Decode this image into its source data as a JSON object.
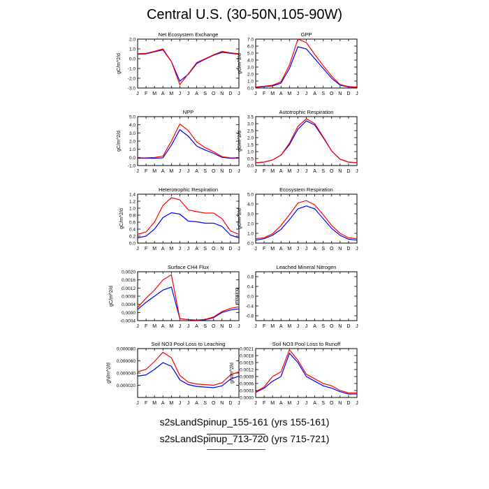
{
  "title": "Central U.S. (30-50N,105-90W)",
  "months": [
    "J",
    "F",
    "M",
    "A",
    "M",
    "J",
    "J",
    "A",
    "S",
    "O",
    "N",
    "D",
    "J"
  ],
  "legend": [
    {
      "label": "s2sLandSpinup_155-161 (yrs 155-161)",
      "color": "#0000ff"
    },
    {
      "label": "s2sLandSpinup_713-720 (yrs 715-721)",
      "color": "#ff0000"
    }
  ],
  "chart_data": [
    {
      "type": "line",
      "title": "Net Ecosystem Exchange",
      "ylabel": "gC/m^2/d",
      "ylim": [
        -3.0,
        2.0
      ],
      "yticks": [
        -3.0,
        -2.0,
        -1.0,
        0.0,
        1.0,
        2.0
      ],
      "ytick_labels": [
        "-3.0",
        "-2.0",
        "-1.0",
        "0.0",
        "1.0",
        "2.0"
      ],
      "series": [
        {
          "color": "#0000ff",
          "values": [
            0.45,
            0.5,
            0.7,
            0.9,
            -0.3,
            -2.3,
            -1.6,
            -0.5,
            -0.05,
            0.35,
            0.65,
            0.55,
            0.45
          ]
        },
        {
          "color": "#ff0000",
          "values": [
            0.5,
            0.55,
            0.75,
            1.0,
            -0.3,
            -2.65,
            -1.55,
            -0.4,
            0.0,
            0.4,
            0.75,
            0.6,
            0.5
          ]
        }
      ]
    },
    {
      "type": "line",
      "title": "GPP",
      "ylabel": "gC/m^2/d",
      "ylim": [
        0.0,
        7.0
      ],
      "yticks": [
        0,
        1,
        2,
        3,
        4,
        5,
        6,
        7
      ],
      "ytick_labels": [
        "0.0",
        "1.0",
        "2.0",
        "3.0",
        "4.0",
        "5.0",
        "6.0",
        "7.0"
      ],
      "series": [
        {
          "color": "#0000ff",
          "values": [
            0.1,
            0.2,
            0.3,
            0.7,
            2.8,
            5.9,
            5.6,
            4.2,
            2.8,
            1.4,
            0.4,
            0.15,
            0.1
          ]
        },
        {
          "color": "#ff0000",
          "values": [
            0.15,
            0.25,
            0.4,
            0.9,
            3.3,
            7.0,
            6.5,
            4.8,
            3.2,
            1.7,
            0.5,
            0.2,
            0.15
          ]
        }
      ]
    },
    {
      "type": "line",
      "title": "NPP",
      "ylabel": "gC/m^2/d",
      "ylim": [
        -1.0,
        5.0
      ],
      "yticks": [
        -1,
        0,
        1,
        2,
        3,
        4,
        5
      ],
      "ytick_labels": [
        "-1.0",
        "0.0",
        "1.0",
        "2.0",
        "3.0",
        "4.0",
        "5.0"
      ],
      "series": [
        {
          "color": "#0000ff",
          "values": [
            -0.1,
            -0.1,
            -0.1,
            -0.05,
            1.5,
            3.4,
            2.6,
            1.4,
            0.9,
            0.5,
            0.0,
            -0.1,
            -0.1
          ]
        },
        {
          "color": "#ff0000",
          "values": [
            -0.05,
            -0.05,
            0.0,
            0.15,
            2.0,
            4.1,
            3.3,
            1.9,
            1.2,
            0.7,
            0.1,
            -0.05,
            -0.05
          ]
        }
      ]
    },
    {
      "type": "line",
      "title": "Autotrophic Respiration",
      "ylabel": "gC/m^2/d",
      "ylim": [
        0.0,
        3.5
      ],
      "yticks": [
        0,
        0.5,
        1,
        1.5,
        2,
        2.5,
        3,
        3.5
      ],
      "ytick_labels": [
        "0.0",
        "0.5",
        "1.0",
        "1.5",
        "2.0",
        "2.5",
        "3.0",
        "3.5"
      ],
      "series": [
        {
          "color": "#0000ff",
          "values": [
            0.2,
            0.25,
            0.4,
            0.75,
            1.5,
            2.6,
            3.2,
            2.9,
            2.0,
            1.05,
            0.45,
            0.25,
            0.2
          ]
        },
        {
          "color": "#ff0000",
          "values": [
            0.2,
            0.25,
            0.4,
            0.75,
            1.6,
            2.8,
            3.35,
            3.0,
            2.05,
            1.05,
            0.45,
            0.25,
            0.2
          ]
        }
      ]
    },
    {
      "type": "line",
      "title": "Heterotrophic Respiration",
      "ylabel": "gC/m^2/d",
      "ylim": [
        0.0,
        1.4
      ],
      "yticks": [
        0,
        0.2,
        0.4,
        0.6,
        0.8,
        1.0,
        1.2,
        1.4
      ],
      "ytick_labels": [
        "0.0",
        "0.2",
        "0.4",
        "0.6",
        "0.8",
        "1.0",
        "1.2",
        "1.4"
      ],
      "series": [
        {
          "color": "#0000ff",
          "values": [
            0.15,
            0.2,
            0.4,
            0.73,
            0.87,
            0.83,
            0.63,
            0.61,
            0.57,
            0.57,
            0.48,
            0.23,
            0.15
          ]
        },
        {
          "color": "#ff0000",
          "values": [
            0.25,
            0.32,
            0.6,
            1.08,
            1.3,
            1.24,
            0.95,
            0.9,
            0.86,
            0.86,
            0.7,
            0.35,
            0.25
          ]
        }
      ]
    },
    {
      "type": "line",
      "title": "Ecosystem Respiration",
      "ylabel": "gC/m^2/d",
      "ylim": [
        0.0,
        5.0
      ],
      "yticks": [
        0,
        1,
        2,
        3,
        4,
        5
      ],
      "ytick_labels": [
        "0.0",
        "1.0",
        "2.0",
        "3.0",
        "4.0",
        "5.0"
      ],
      "series": [
        {
          "color": "#0000ff",
          "values": [
            0.3,
            0.45,
            0.8,
            1.4,
            2.4,
            3.5,
            3.8,
            3.5,
            2.5,
            1.5,
            0.8,
            0.4,
            0.3
          ]
        },
        {
          "color": "#ff0000",
          "values": [
            0.45,
            0.55,
            0.95,
            1.8,
            2.9,
            4.1,
            4.35,
            3.9,
            2.9,
            1.8,
            1.0,
            0.55,
            0.45
          ]
        }
      ]
    },
    {
      "type": "line",
      "title": "Surface CH4 Flux",
      "ylabel": "gC/m^2/d",
      "ylim": [
        -0.0004,
        0.002
      ],
      "yticks": [
        -0.0004,
        0,
        0.0004,
        0.0008,
        0.0012,
        0.0016,
        0.002
      ],
      "ytick_labels": [
        "-0.0004",
        "0.0000",
        "0.0004",
        "0.0008",
        "0.0012",
        "0.0016",
        "0.0020"
      ],
      "series": [
        {
          "color": "#0000ff",
          "values": [
            0.00015,
            0.0005,
            0.0008,
            0.0011,
            0.00125,
            -0.0003,
            -0.00035,
            -0.00038,
            -0.00036,
            -0.00025,
            0.0,
            0.00012,
            0.00018
          ]
        },
        {
          "color": "#ff0000",
          "values": [
            0.00025,
            0.0007,
            0.0011,
            0.0016,
            0.00185,
            -0.0003,
            -0.00035,
            -0.00037,
            -0.00034,
            -0.00022,
            5e-05,
            0.0002,
            0.00028
          ]
        }
      ]
    },
    {
      "type": "line",
      "title": "Leached Mineral Nitrogen",
      "ylabel": "missing",
      "ylim": [
        -1.0,
        1.0
      ],
      "yticks": [
        -0.8,
        -0.4,
        0,
        0.4,
        0.8
      ],
      "ytick_labels": [
        "-0.8",
        "-0.4",
        "0.0",
        "0.4",
        "0.8"
      ],
      "series": []
    },
    {
      "type": "line",
      "title": "Soil NO3 Pool Loss to Leaching",
      "ylabel": "gN/m^2/d",
      "ylim": [
        0.0,
        8e-05
      ],
      "yticks": [
        2e-05,
        4e-05,
        6e-05,
        8e-05
      ],
      "ytick_labels": [
        "0.000020",
        "0.000040",
        "0.000060",
        "0.000080"
      ],
      "series": [
        {
          "color": "#0000ff",
          "values": [
            3.5e-05,
            3.7e-05,
            4.6e-05,
            5.7e-05,
            5.1e-05,
            2.9e-05,
            2.1e-05,
            1.8e-05,
            1.7e-05,
            1.6e-05,
            1.9e-05,
            3e-05,
            3.5e-05
          ]
        },
        {
          "color": "#ff0000",
          "values": [
            4.2e-05,
            4.6e-05,
            5.9e-05,
            7.4e-05,
            6.5e-05,
            3.6e-05,
            2.5e-05,
            2.2e-05,
            2.1e-05,
            2e-05,
            2.4e-05,
            3.7e-05,
            4.2e-05
          ]
        }
      ]
    },
    {
      "type": "line",
      "title": "Soil NO3 Pool Loss to Runoff",
      "ylabel": "gN/m^2/d",
      "ylim": [
        0.0,
        0.0021
      ],
      "yticks": [
        0,
        0.0003,
        0.0006,
        0.0009,
        0.0012,
        0.0015,
        0.0018,
        0.0021
      ],
      "ytick_labels": [
        "0.0000",
        "0.0003",
        "0.0006",
        "0.0009",
        "0.0012",
        "0.0015",
        "0.0018",
        "0.0021"
      ],
      "series": [
        {
          "color": "#0000ff",
          "values": [
            0.00022,
            0.0004,
            0.0007,
            0.0009,
            0.0019,
            0.0015,
            0.0009,
            0.0007,
            0.0005,
            0.0004,
            0.00025,
            0.00015,
            0.00015
          ]
        },
        {
          "color": "#ff0000",
          "values": [
            0.00025,
            0.00045,
            0.0009,
            0.0011,
            0.00205,
            0.0016,
            0.001,
            0.0008,
            0.0006,
            0.0005,
            0.0003,
            0.0002,
            0.0002
          ]
        }
      ]
    }
  ]
}
